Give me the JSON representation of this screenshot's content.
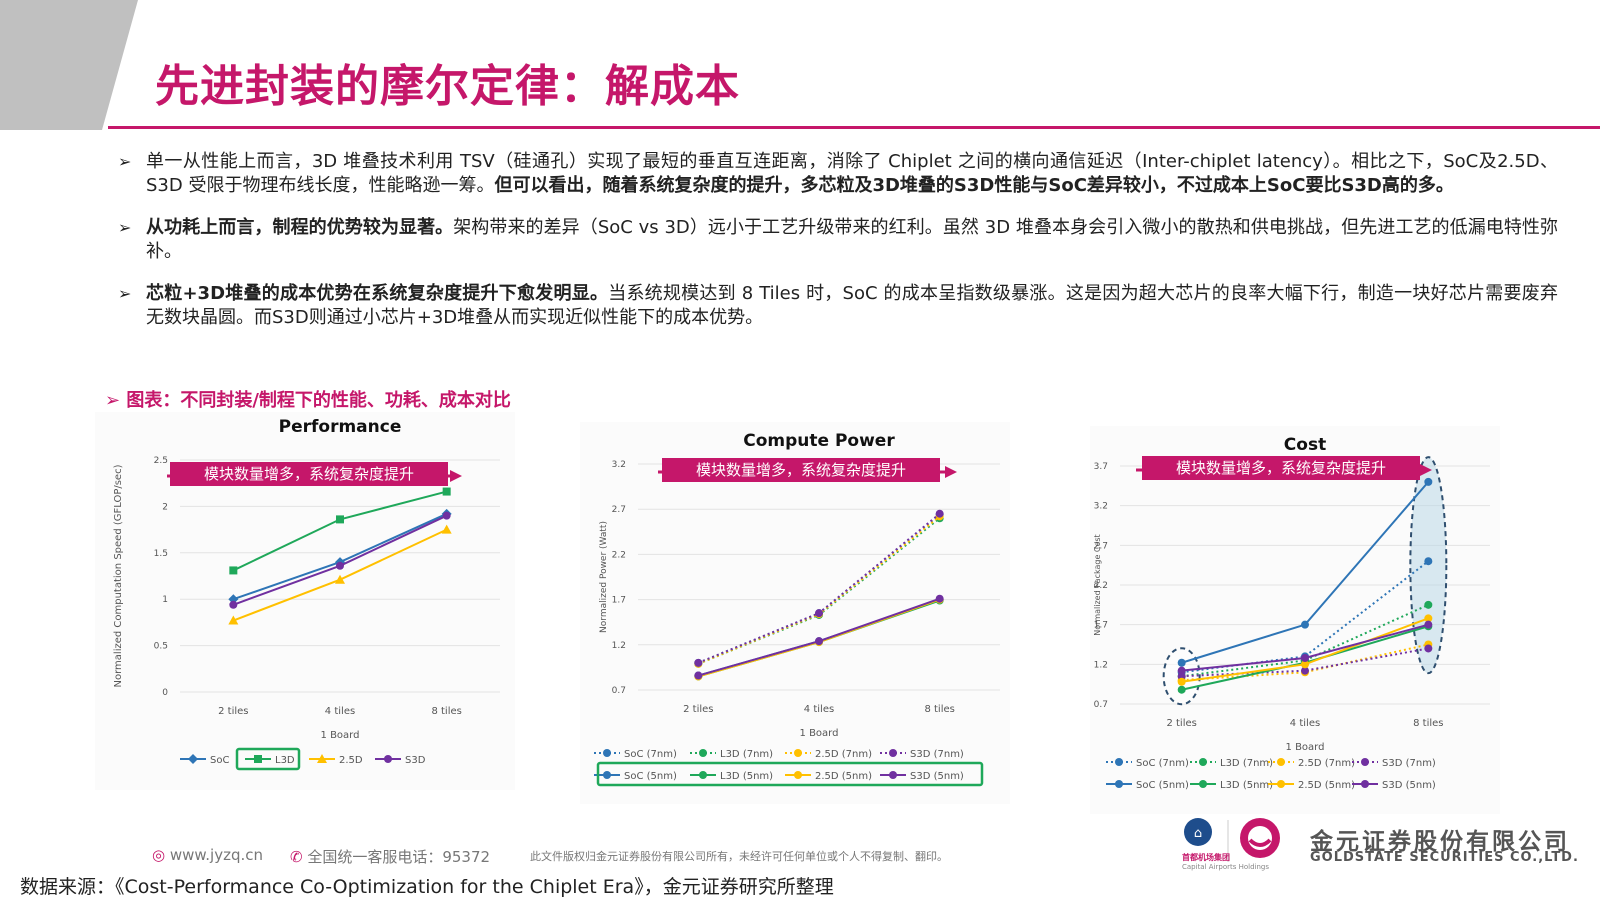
{
  "title": "先进封装的摩尔定律：解成本",
  "bullets": [
    {
      "plain1": "单一从性能上而言，3D 堆叠技术利用 TSV（硅通孔）实现了最短的垂直互连距离，消除了 Chiplet 之间的横向通信延迟（Inter-chiplet latency）。相比之下，SoC及2.5D、S3D 受限于物理布线长度，性能略逊一筹。",
      "bold": "但可以看出，随着系统复杂度的提升，多芯粒及3D堆叠的S3D性能与SoC差异较小，不过成本上SoC要比S3D高的多。",
      "plain2": ""
    },
    {
      "plain1": "",
      "bold": "从功耗上而言，制程的优势较为显著。",
      "plain2": "架构带来的差异（SoC vs 3D）远小于工艺升级带来的红利。虽然 3D 堆叠本身会引入微小的散热和供电挑战，但先进工艺的低漏电特性弥补。"
    },
    {
      "plain1": "",
      "bold": "芯粒+3D堆叠的成本优势在系统复杂度提升下愈发明显。",
      "plain2": "当系统规模达到 8 Tiles 时，SoC 的成本呈指数级暴涨。这是因为超大芯片的良率大幅下行，制造一块好芯片需要废弃无数块晶圆。而S3D则通过小芯片+3D堆叠从而实现近似性能下的成本优势。"
    }
  ],
  "figure_caption": "图表：不同封装/制程下的性能、功耗、成本对比",
  "annotation_label": "模块数量增多，系统复杂度提升",
  "chart_data": [
    {
      "type": "line",
      "title": "Performance",
      "xlabel": "1 Board",
      "ylabel": "Normalized Computation Speed (GFLOP/sec)",
      "categories": [
        "2 tiles",
        "4 tiles",
        "8 tiles"
      ],
      "yticks": [
        "0",
        "0.5",
        "1",
        "1.5",
        "2",
        "2.5"
      ],
      "ylim": [
        0,
        2.5
      ],
      "series": [
        {
          "name": "SoC",
          "color": "#2e75b6",
          "marker": "diamond",
          "dashed": false,
          "values": [
            1.0,
            1.4,
            1.92
          ]
        },
        {
          "name": "L3D",
          "color": "#1fa85a",
          "marker": "square",
          "dashed": false,
          "values": [
            1.31,
            1.86,
            2.16
          ]
        },
        {
          "name": "2.5D",
          "color": "#ffc000",
          "marker": "triangle",
          "dashed": false,
          "values": [
            0.77,
            1.21,
            1.75
          ]
        },
        {
          "name": "S3D",
          "color": "#7030a0",
          "marker": "circle",
          "dashed": false,
          "values": [
            0.94,
            1.36,
            1.9
          ]
        }
      ],
      "legend_highlight": "L3D"
    },
    {
      "type": "line",
      "title": "Compute Power",
      "xlabel": "1 Board",
      "ylabel": "Normalized Power (Watt)",
      "categories": [
        "2 tiles",
        "4 tiles",
        "8 tiles"
      ],
      "yticks": [
        "0.7",
        "1.2",
        "1.7",
        "2.2",
        "2.7",
        "3.2"
      ],
      "ylim": [
        0.7,
        3.2
      ],
      "series": [
        {
          "name": "SoC (7nm)",
          "color": "#2e75b6",
          "dashed": true,
          "values": [
            1.0,
            1.55,
            2.64
          ]
        },
        {
          "name": "L3D (7nm)",
          "color": "#1fa85a",
          "dashed": true,
          "values": [
            0.99,
            1.53,
            2.6
          ]
        },
        {
          "name": "2.5D (7nm)",
          "color": "#ffc000",
          "dashed": true,
          "values": [
            0.99,
            1.54,
            2.62
          ]
        },
        {
          "name": "S3D (7nm)",
          "color": "#7030a0",
          "dashed": true,
          "values": [
            1.0,
            1.55,
            2.65
          ]
        },
        {
          "name": "SoC (5nm)",
          "color": "#2e75b6",
          "dashed": false,
          "values": [
            0.86,
            1.24,
            1.7
          ]
        },
        {
          "name": "L3D (5nm)",
          "color": "#1fa85a",
          "dashed": false,
          "values": [
            0.85,
            1.23,
            1.69
          ]
        },
        {
          "name": "2.5D (5nm)",
          "color": "#ffc000",
          "dashed": false,
          "values": [
            0.85,
            1.23,
            1.7
          ]
        },
        {
          "name": "S3D (5nm)",
          "color": "#7030a0",
          "dashed": false,
          "values": [
            0.86,
            1.24,
            1.71
          ]
        }
      ],
      "legend_highlight_row": 2
    },
    {
      "type": "line",
      "title": "Cost",
      "xlabel": "1 Board",
      "ylabel": "Normalized Package Cost",
      "categories": [
        "2 tiles",
        "4 tiles",
        "8 tiles"
      ],
      "yticks": [
        "0.7",
        "1.2",
        "1.7",
        "2.2",
        "2.7",
        "3.2",
        "3.7"
      ],
      "ylim": [
        0.7,
        3.7
      ],
      "series": [
        {
          "name": "SoC (7nm)",
          "color": "#2e75b6",
          "dashed": true,
          "values": [
            1.1,
            1.3,
            2.5
          ]
        },
        {
          "name": "L3D (7nm)",
          "color": "#1fa85a",
          "dashed": true,
          "values": [
            1.05,
            1.25,
            1.95
          ]
        },
        {
          "name": "2.5D (7nm)",
          "color": "#ffc000",
          "dashed": true,
          "values": [
            1.0,
            1.1,
            1.45
          ]
        },
        {
          "name": "S3D (7nm)",
          "color": "#7030a0",
          "dashed": true,
          "values": [
            1.05,
            1.12,
            1.4
          ]
        },
        {
          "name": "SoC (5nm)",
          "color": "#2e75b6",
          "dashed": false,
          "values": [
            1.22,
            1.7,
            3.5
          ]
        },
        {
          "name": "L3D (5nm)",
          "color": "#1fa85a",
          "dashed": false,
          "values": [
            0.88,
            1.22,
            1.68
          ]
        },
        {
          "name": "2.5D (5nm)",
          "color": "#ffc000",
          "dashed": false,
          "values": [
            0.98,
            1.2,
            1.78
          ]
        },
        {
          "name": "S3D (5nm)",
          "color": "#7030a0",
          "dashed": false,
          "values": [
            1.12,
            1.28,
            1.7
          ]
        }
      ]
    }
  ],
  "footer": {
    "site": "www.jyzq.cn",
    "hotline": "全国统一客服电话：95372",
    "copyright": "此文件版权归金元证券股份有限公司所有，未经许可任何单位或个人不得复制、翻印。",
    "company_cn": "金元证券股份有限公司",
    "company_en": "GOLDSTATE SECURITIES CO.,LTD.",
    "airport_group_cn": "首都机场集团",
    "airport_group_en": "Capital Airports Holdings"
  },
  "source": "数据来源：《Cost-Performance Co-Optimization for the Chiplet Era》，金元证券研究所整理",
  "colors": {
    "accent": "#c5176a",
    "soc": "#2e75b6",
    "l3d": "#1fa85a",
    "d25": "#ffc000",
    "s3d": "#7030a0",
    "legend_highlight": "#1fa85a",
    "ellipse_fill": "#bcd9e8"
  }
}
